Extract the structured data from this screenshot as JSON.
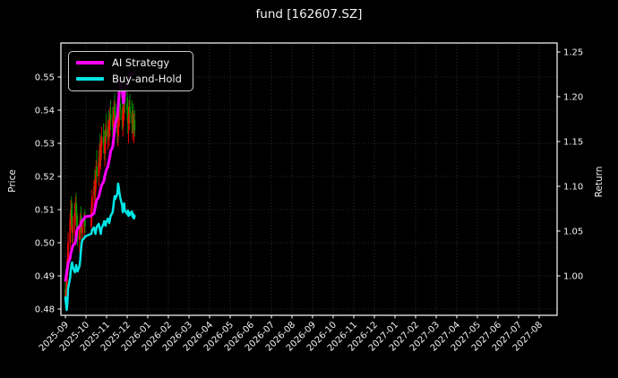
{
  "title": "fund [162607.SZ]",
  "legend": [
    {
      "label": "AI Strategy",
      "color": "#ff00ff"
    },
    {
      "label": "Buy-and-Hold",
      "color": "#00e6e6"
    }
  ],
  "axes": {
    "left": {
      "label": "Price",
      "ticks": [
        "0.48",
        "0.49",
        "0.50",
        "0.51",
        "0.52",
        "0.53",
        "0.54",
        "0.55"
      ]
    },
    "right": {
      "label": "Return",
      "ticks": [
        "1.00",
        "1.05",
        "1.10",
        "1.15",
        "1.20",
        "1.25"
      ]
    },
    "x": {
      "ticks": [
        "2025-09",
        "2025-10",
        "2025-11",
        "2025-12",
        "2026-01",
        "2026-02",
        "2026-03",
        "2026-04",
        "2026-05",
        "2026-06",
        "2026-07",
        "2026-08",
        "2026-09",
        "2026-10",
        "2026-11",
        "2026-12",
        "2027-01",
        "2027-02",
        "2027-03",
        "2027-04",
        "2027-05",
        "2027-06",
        "2027-07",
        "2027-08"
      ]
    }
  },
  "colors": {
    "background": "#000000",
    "text": "#f2f2f2",
    "spine": "#ffffff",
    "grid": "#3c3c3c",
    "candle_up": "#ff0000",
    "candle_down": "#009900",
    "ai_line": "#ff00ff",
    "bh_line": "#00e6e6"
  },
  "chart_data": {
    "type": "candlestick+line",
    "title": "fund [162607.SZ]",
    "xlabel": "",
    "ylabel_left": "Price",
    "ylabel_right": "Return",
    "ylim_left": [
      0.478,
      0.56
    ],
    "ylim_right": [
      0.955,
      1.26
    ],
    "x_range": [
      "2025-09",
      "2027-08"
    ],
    "grid": true,
    "legend_position": "upper-left",
    "candles_note": "OHLC values estimated from pixels; red=up green=down",
    "candles": [
      [
        "2025-09-01",
        0.486,
        0.489,
        0.481,
        0.483
      ],
      [
        "2025-09-02",
        0.483,
        0.486,
        0.48,
        0.485
      ],
      [
        "2025-09-03",
        0.485,
        0.492,
        0.484,
        0.49
      ],
      [
        "2025-09-04",
        0.49,
        0.497,
        0.488,
        0.495
      ],
      [
        "2025-09-05",
        0.495,
        0.503,
        0.493,
        0.5
      ],
      [
        "2025-09-08",
        0.5,
        0.509,
        0.498,
        0.507
      ],
      [
        "2025-09-09",
        0.507,
        0.513,
        0.504,
        0.51
      ],
      [
        "2025-09-10",
        0.51,
        0.514,
        0.505,
        0.507
      ],
      [
        "2025-09-11",
        0.507,
        0.512,
        0.5,
        0.503
      ],
      [
        "2025-09-12",
        0.503,
        0.508,
        0.498,
        0.505
      ],
      [
        "2025-09-15",
        0.505,
        0.512,
        0.502,
        0.509
      ],
      [
        "2025-09-16",
        0.509,
        0.514,
        0.506,
        0.512
      ],
      [
        "2025-09-17",
        0.512,
        0.515,
        0.507,
        0.509
      ],
      [
        "2025-09-18",
        0.509,
        0.511,
        0.502,
        0.504
      ],
      [
        "2025-09-19",
        0.504,
        0.508,
        0.499,
        0.501
      ],
      [
        "2025-09-22",
        0.501,
        0.506,
        0.497,
        0.504
      ],
      [
        "2025-09-23",
        0.504,
        0.509,
        0.501,
        0.507
      ],
      [
        "2025-09-24",
        0.507,
        0.511,
        0.503,
        0.505
      ],
      [
        "2025-09-25",
        0.505,
        0.508,
        0.5,
        0.503
      ],
      [
        "2025-09-26",
        0.503,
        0.507,
        0.499,
        0.505
      ],
      [
        "2025-09-29",
        0.505,
        0.509,
        0.502,
        0.507
      ],
      [
        "2025-09-30",
        0.507,
        0.51,
        0.503,
        0.505
      ],
      [
        "2025-10-09",
        0.505,
        0.512,
        0.503,
        0.51
      ],
      [
        "2025-10-10",
        0.51,
        0.516,
        0.507,
        0.514
      ],
      [
        "2025-10-13",
        0.514,
        0.519,
        0.51,
        0.517
      ],
      [
        "2025-10-14",
        0.517,
        0.522,
        0.513,
        0.515
      ],
      [
        "2025-10-15",
        0.515,
        0.521,
        0.512,
        0.519
      ],
      [
        "2025-10-16",
        0.519,
        0.525,
        0.516,
        0.523
      ],
      [
        "2025-10-17",
        0.523,
        0.528,
        0.518,
        0.52
      ],
      [
        "2025-10-20",
        0.52,
        0.526,
        0.517,
        0.524
      ],
      [
        "2025-10-21",
        0.524,
        0.53,
        0.521,
        0.528
      ],
      [
        "2025-10-22",
        0.528,
        0.533,
        0.523,
        0.525
      ],
      [
        "2025-10-23",
        0.525,
        0.531,
        0.522,
        0.529
      ],
      [
        "2025-10-24",
        0.529,
        0.535,
        0.526,
        0.532
      ],
      [
        "2025-10-27",
        0.532,
        0.536,
        0.527,
        0.53
      ],
      [
        "2025-10-28",
        0.53,
        0.534,
        0.525,
        0.527
      ],
      [
        "2025-10-29",
        0.527,
        0.532,
        0.523,
        0.53
      ],
      [
        "2025-10-30",
        0.53,
        0.536,
        0.527,
        0.534
      ],
      [
        "2025-10-31",
        0.534,
        0.539,
        0.53,
        0.532
      ],
      [
        "2025-11-03",
        0.532,
        0.537,
        0.528,
        0.535
      ],
      [
        "2025-11-04",
        0.535,
        0.54,
        0.531,
        0.533
      ],
      [
        "2025-11-05",
        0.533,
        0.538,
        0.529,
        0.536
      ],
      [
        "2025-11-06",
        0.536,
        0.541,
        0.532,
        0.539
      ],
      [
        "2025-11-07",
        0.539,
        0.543,
        0.534,
        0.537
      ],
      [
        "2025-11-10",
        0.537,
        0.541,
        0.532,
        0.535
      ],
      [
        "2025-11-11",
        0.535,
        0.54,
        0.531,
        0.538
      ],
      [
        "2025-11-12",
        0.538,
        0.543,
        0.534,
        0.541
      ],
      [
        "2025-11-13",
        0.541,
        0.545,
        0.536,
        0.539
      ],
      [
        "2025-11-14",
        0.539,
        0.542,
        0.533,
        0.536
      ],
      [
        "2025-11-17",
        0.536,
        0.54,
        0.53,
        0.533
      ],
      [
        "2025-11-18",
        0.533,
        0.538,
        0.529,
        0.536
      ],
      [
        "2025-11-19",
        0.536,
        0.541,
        0.532,
        0.539
      ],
      [
        "2025-11-20",
        0.539,
        0.544,
        0.535,
        0.542
      ],
      [
        "2025-11-21",
        0.542,
        0.546,
        0.537,
        0.54
      ],
      [
        "2025-11-24",
        0.54,
        0.544,
        0.534,
        0.537
      ],
      [
        "2025-11-25",
        0.537,
        0.541,
        0.532,
        0.539
      ],
      [
        "2025-11-26",
        0.539,
        0.543,
        0.535,
        0.541
      ],
      [
        "2025-11-27",
        0.541,
        0.546,
        0.537,
        0.544
      ],
      [
        "2025-11-28",
        0.544,
        0.548,
        0.539,
        0.542
      ],
      [
        "2025-12-01",
        0.542,
        0.547,
        0.537,
        0.54
      ],
      [
        "2025-12-02",
        0.54,
        0.544,
        0.533,
        0.536
      ],
      [
        "2025-12-03",
        0.536,
        0.541,
        0.53,
        0.538
      ],
      [
        "2025-12-04",
        0.538,
        0.543,
        0.534,
        0.541
      ],
      [
        "2025-12-05",
        0.541,
        0.545,
        0.536,
        0.539
      ],
      [
        "2025-12-08",
        0.539,
        0.543,
        0.533,
        0.536
      ],
      [
        "2025-12-09",
        0.536,
        0.54,
        0.531,
        0.538
      ],
      [
        "2025-12-10",
        0.538,
        0.542,
        0.533,
        0.535
      ],
      [
        "2025-12-11",
        0.535,
        0.539,
        0.53,
        0.537
      ],
      [
        "2025-12-12",
        0.537,
        0.54,
        0.532,
        0.534
      ]
    ],
    "series": [
      {
        "name": "AI Strategy",
        "axis": "return",
        "color": "#ff00ff",
        "points": [
          [
            "2025-09-01",
            0.995
          ],
          [
            "2025-09-02",
            0.999
          ],
          [
            "2025-09-03",
            1.004
          ],
          [
            "2025-09-04",
            1.009
          ],
          [
            "2025-09-05",
            1.014
          ],
          [
            "2025-09-08",
            1.02
          ],
          [
            "2025-09-09",
            1.025
          ],
          [
            "2025-09-10",
            1.028
          ],
          [
            "2025-09-11",
            1.03
          ],
          [
            "2025-09-12",
            1.034
          ],
          [
            "2025-09-15",
            1.036
          ],
          [
            "2025-09-16",
            1.038
          ],
          [
            "2025-09-17",
            1.044
          ],
          [
            "2025-09-18",
            1.05
          ],
          [
            "2025-09-19",
            1.053
          ],
          [
            "2025-09-22",
            1.055
          ],
          [
            "2025-09-23",
            1.056
          ],
          [
            "2025-09-24",
            1.058
          ],
          [
            "2025-09-25",
            1.06
          ],
          [
            "2025-09-26",
            1.062
          ],
          [
            "2025-09-29",
            1.064
          ],
          [
            "2025-09-30",
            1.066
          ],
          [
            "2025-10-09",
            1.067
          ],
          [
            "2025-10-10",
            1.068
          ],
          [
            "2025-10-13",
            1.07
          ],
          [
            "2025-10-14",
            1.074
          ],
          [
            "2025-10-15",
            1.078
          ],
          [
            "2025-10-16",
            1.082
          ],
          [
            "2025-10-17",
            1.085
          ],
          [
            "2025-10-20",
            1.088
          ],
          [
            "2025-10-21",
            1.092
          ],
          [
            "2025-10-22",
            1.095
          ],
          [
            "2025-10-23",
            1.098
          ],
          [
            "2025-10-24",
            1.101
          ],
          [
            "2025-10-27",
            1.105
          ],
          [
            "2025-10-28",
            1.108
          ],
          [
            "2025-10-29",
            1.112
          ],
          [
            "2025-10-30",
            1.115
          ],
          [
            "2025-10-31",
            1.118
          ],
          [
            "2025-11-03",
            1.122
          ],
          [
            "2025-11-04",
            1.126
          ],
          [
            "2025-11-05",
            1.13
          ],
          [
            "2025-11-06",
            1.134
          ],
          [
            "2025-11-07",
            1.139
          ],
          [
            "2025-11-10",
            1.144
          ],
          [
            "2025-11-11",
            1.15
          ],
          [
            "2025-11-12",
            1.157
          ],
          [
            "2025-11-13",
            1.163
          ],
          [
            "2025-11-14",
            1.17
          ],
          [
            "2025-11-17",
            1.178
          ],
          [
            "2025-11-18",
            1.188
          ],
          [
            "2025-11-19",
            1.198
          ],
          [
            "2025-11-20",
            1.208
          ],
          [
            "2025-11-21",
            1.216
          ],
          [
            "2025-11-24",
            1.21
          ],
          [
            "2025-11-25",
            1.2
          ],
          [
            "2025-11-26",
            1.193
          ],
          [
            "2025-11-27",
            1.198
          ],
          [
            "2025-11-28",
            1.208
          ],
          [
            "2025-12-01",
            1.215
          ],
          [
            "2025-12-02",
            1.22
          ],
          [
            "2025-12-03",
            1.223
          ],
          [
            "2025-12-04",
            1.225
          ],
          [
            "2025-12-05",
            1.224
          ],
          [
            "2025-12-08",
            1.226
          ],
          [
            "2025-12-09",
            1.225
          ],
          [
            "2025-12-10",
            1.227
          ],
          [
            "2025-12-11",
            1.226
          ],
          [
            "2025-12-12",
            1.228
          ]
        ]
      },
      {
        "name": "Buy-and-Hold",
        "axis": "return",
        "color": "#00e6e6",
        "points": [
          [
            "2025-09-01",
            0.976
          ],
          [
            "2025-09-02",
            0.968
          ],
          [
            "2025-09-03",
            0.962
          ],
          [
            "2025-09-04",
            0.97
          ],
          [
            "2025-09-05",
            0.986
          ],
          [
            "2025-09-08",
            0.998
          ],
          [
            "2025-09-09",
            1.006
          ],
          [
            "2025-09-10",
            1.012
          ],
          [
            "2025-09-11",
            1.015
          ],
          [
            "2025-09-12",
            1.01
          ],
          [
            "2025-09-15",
            1.004
          ],
          [
            "2025-09-16",
            1.007
          ],
          [
            "2025-09-17",
            1.012
          ],
          [
            "2025-09-18",
            1.008
          ],
          [
            "2025-09-19",
            1.005
          ],
          [
            "2025-09-22",
            1.011
          ],
          [
            "2025-09-23",
            1.018
          ],
          [
            "2025-09-24",
            1.028
          ],
          [
            "2025-09-25",
            1.036
          ],
          [
            "2025-09-26",
            1.04
          ],
          [
            "2025-09-29",
            1.042
          ],
          [
            "2025-09-30",
            1.044
          ],
          [
            "2025-10-09",
            1.047
          ],
          [
            "2025-10-10",
            1.051
          ],
          [
            "2025-10-13",
            1.054
          ],
          [
            "2025-10-14",
            1.05
          ],
          [
            "2025-10-15",
            1.047
          ],
          [
            "2025-10-16",
            1.051
          ],
          [
            "2025-10-17",
            1.055
          ],
          [
            "2025-10-20",
            1.058
          ],
          [
            "2025-10-21",
            1.054
          ],
          [
            "2025-10-22",
            1.05
          ],
          [
            "2025-10-23",
            1.047
          ],
          [
            "2025-10-24",
            1.053
          ],
          [
            "2025-10-27",
            1.058
          ],
          [
            "2025-10-28",
            1.061
          ],
          [
            "2025-10-29",
            1.058
          ],
          [
            "2025-10-30",
            1.056
          ],
          [
            "2025-10-31",
            1.06
          ],
          [
            "2025-11-03",
            1.064
          ],
          [
            "2025-11-04",
            1.061
          ],
          [
            "2025-11-05",
            1.059
          ],
          [
            "2025-11-06",
            1.063
          ],
          [
            "2025-11-07",
            1.067
          ],
          [
            "2025-11-10",
            1.071
          ],
          [
            "2025-11-11",
            1.077
          ],
          [
            "2025-11-12",
            1.084
          ],
          [
            "2025-11-13",
            1.089
          ],
          [
            "2025-11-14",
            1.086
          ],
          [
            "2025-11-17",
            1.092
          ],
          [
            "2025-11-18",
            1.103
          ],
          [
            "2025-11-19",
            1.099
          ],
          [
            "2025-11-20",
            1.093
          ],
          [
            "2025-11-21",
            1.088
          ],
          [
            "2025-11-24",
            1.079
          ],
          [
            "2025-11-25",
            1.071
          ],
          [
            "2025-11-26",
            1.076
          ],
          [
            "2025-11-27",
            1.081
          ],
          [
            "2025-11-28",
            1.073
          ],
          [
            "2025-12-01",
            1.069
          ],
          [
            "2025-12-02",
            1.073
          ],
          [
            "2025-12-03",
            1.067
          ],
          [
            "2025-12-04",
            1.071
          ],
          [
            "2025-12-05",
            1.068
          ],
          [
            "2025-12-08",
            1.072
          ],
          [
            "2025-12-09",
            1.066
          ],
          [
            "2025-12-10",
            1.069
          ],
          [
            "2025-12-11",
            1.064
          ],
          [
            "2025-12-12",
            1.067
          ]
        ]
      }
    ]
  }
}
